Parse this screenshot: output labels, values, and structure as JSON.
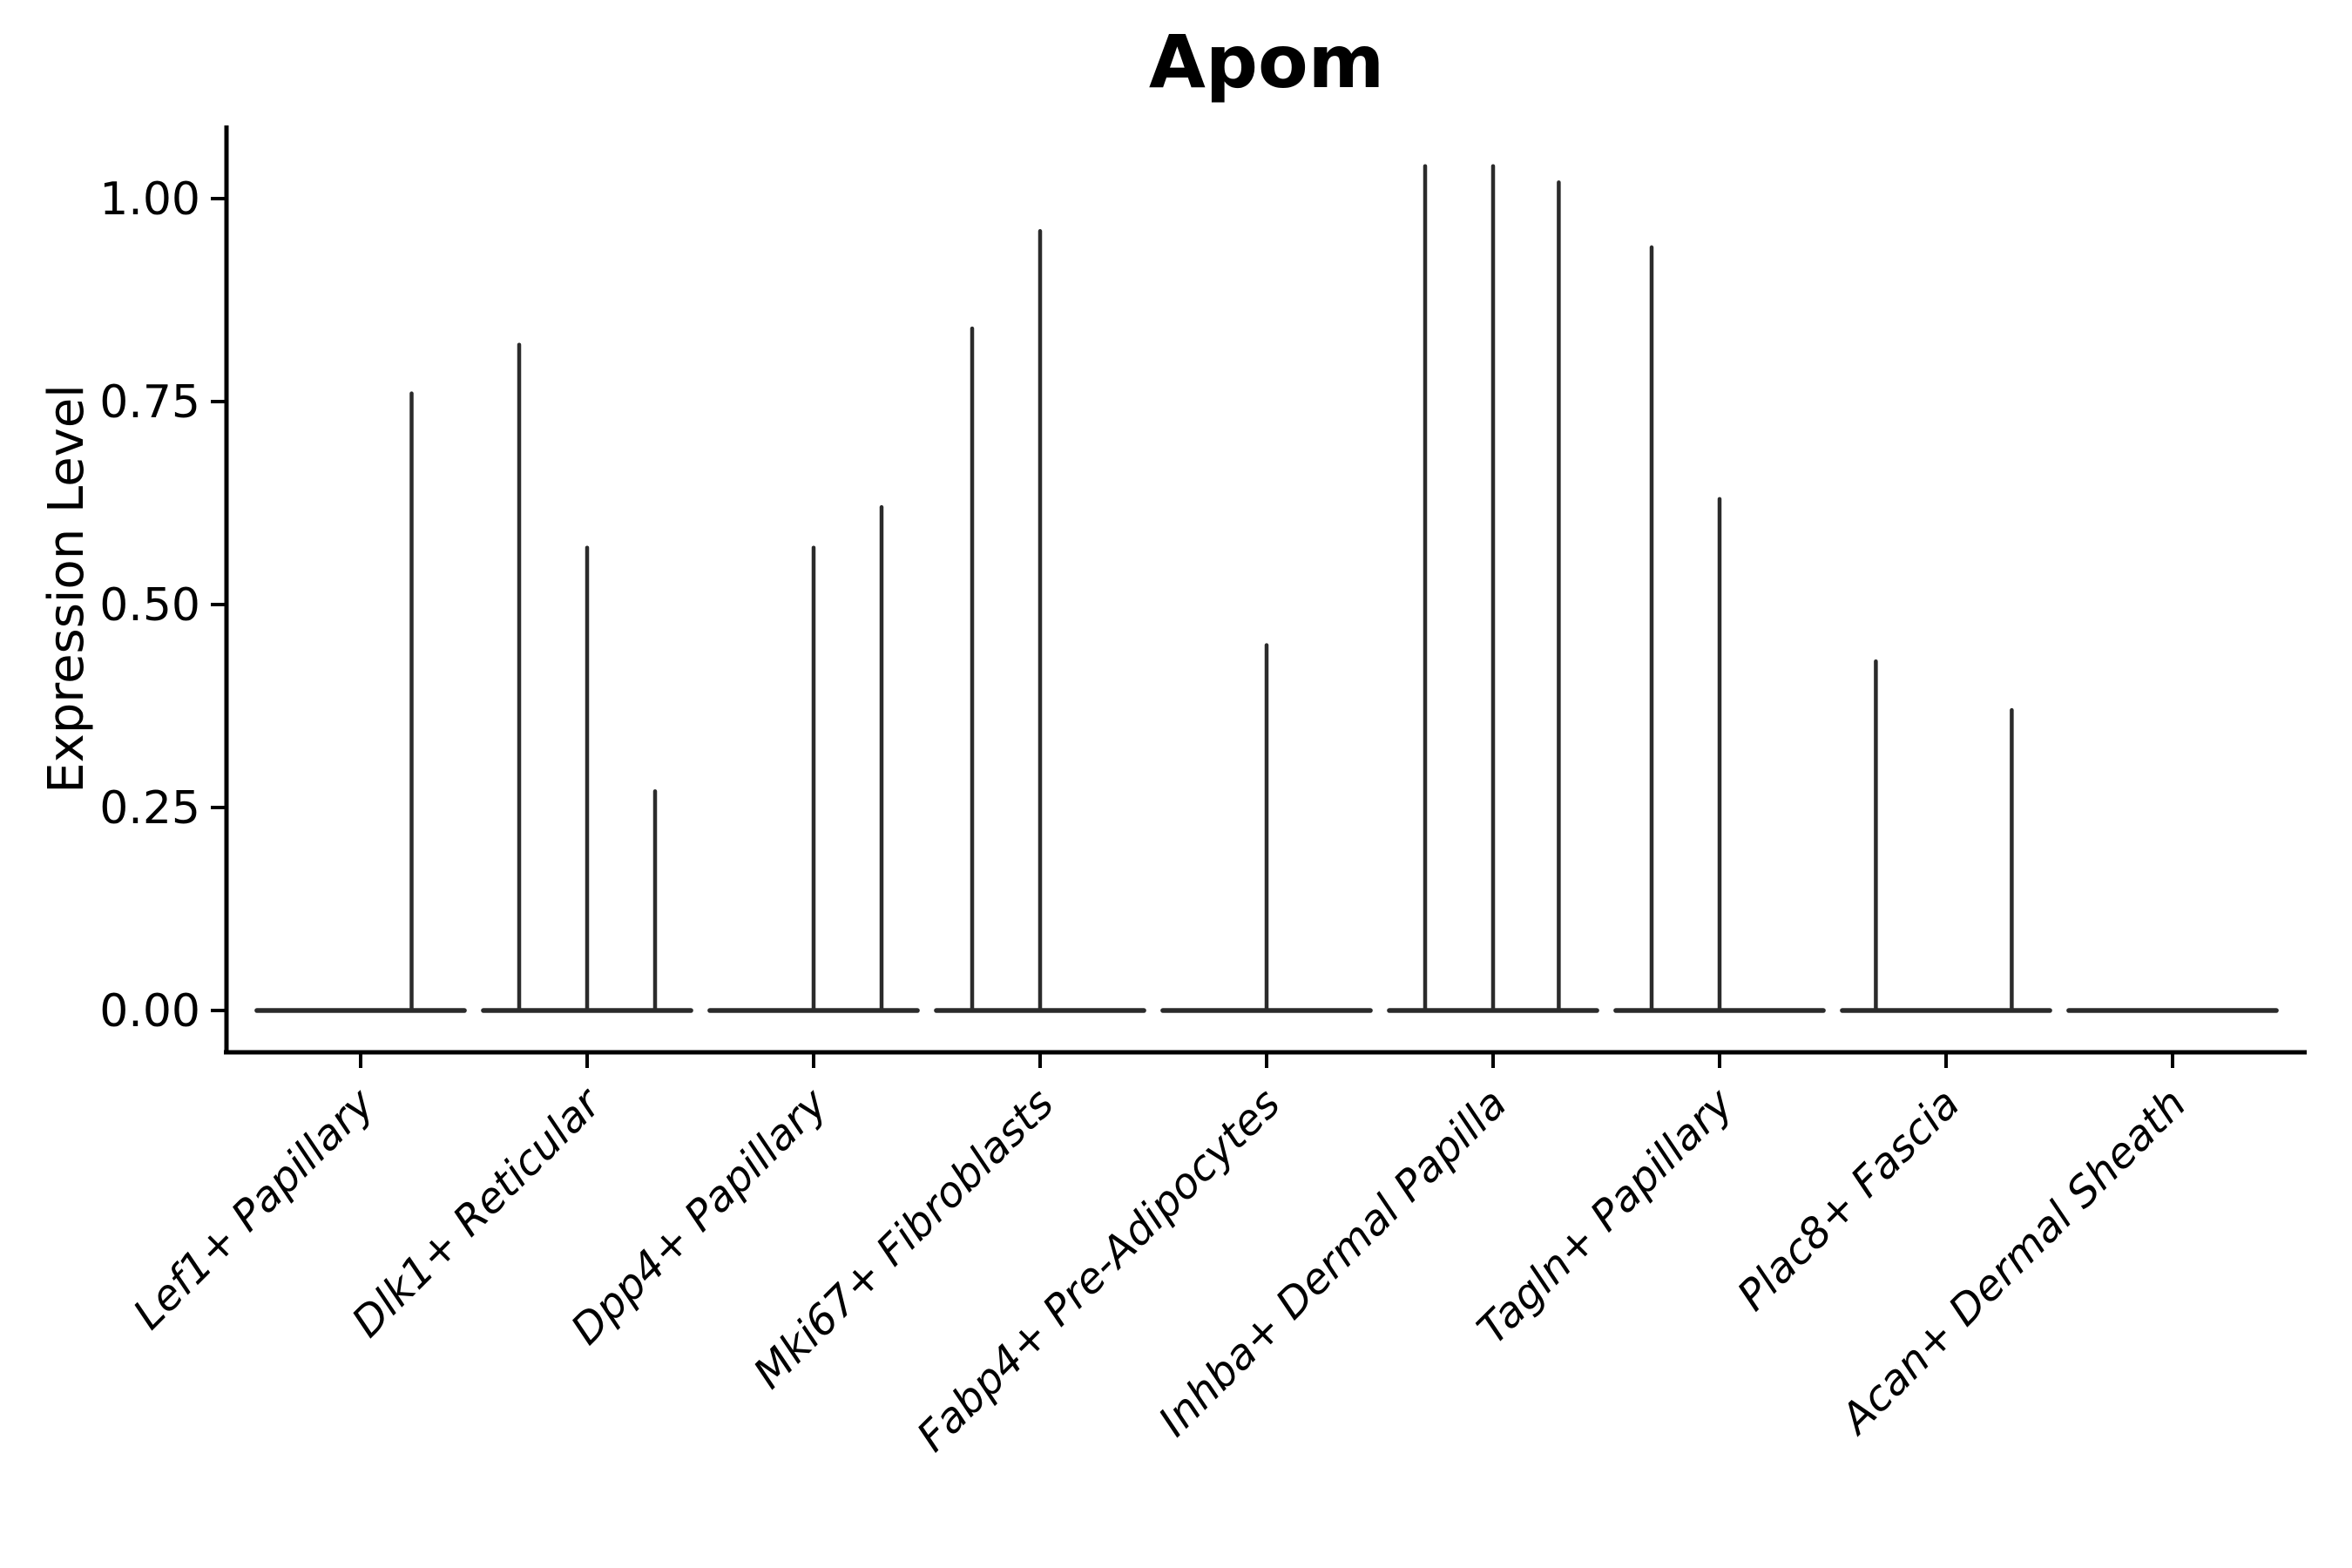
{
  "title": "Apom",
  "chart_data": {
    "type": "violin",
    "title": "Apom",
    "xlabel": "",
    "ylabel": "Expression Level",
    "ylim": [
      -0.052,
      1.09
    ],
    "yticks": [
      0,
      0.25,
      0.5,
      0.75,
      1.0
    ],
    "ytick_labels": [
      "0.00",
      "0.25",
      "0.50",
      "0.75",
      "1.00"
    ],
    "grid": false,
    "legend": "none",
    "line_color": "#2b2b2b",
    "categories": [
      "Lef1+ Papillary",
      "Dlk1+ Reticular",
      "Dpp4+ Papillary",
      "Mki67+ Fibroblasts",
      "Fabp4+ Pre-Adipocytes",
      "Inhba+ Dermal Papilla",
      "Tagln+ Papillary",
      "Plac8+ Fascia",
      "Acan+ Dermal Sheath"
    ],
    "baseline_value": 0.0,
    "baseline_halfwidth": 0.458,
    "violins": [
      {
        "category": "Lef1+ Papillary",
        "spikes": [
          {
            "offset": 0.225,
            "max": 0.76
          }
        ]
      },
      {
        "category": "Dlk1+ Reticular",
        "spikes": [
          {
            "offset": -0.3,
            "max": 0.82
          },
          {
            "offset": 0.0,
            "max": 0.57
          },
          {
            "offset": 0.3,
            "max": 0.27
          }
        ]
      },
      {
        "category": "Dpp4+ Papillary",
        "spikes": [
          {
            "offset": 0.0,
            "max": 0.57
          },
          {
            "offset": 0.3,
            "max": 0.62
          }
        ]
      },
      {
        "category": "Mki67+ Fibroblasts",
        "spikes": [
          {
            "offset": -0.3,
            "max": 0.84
          },
          {
            "offset": 0.0,
            "max": 0.96
          }
        ]
      },
      {
        "category": "Fabp4+ Pre-Adipocytes",
        "spikes": [
          {
            "offset": 0.0,
            "max": 0.45
          }
        ]
      },
      {
        "category": "Inhba+ Dermal Papilla",
        "spikes": [
          {
            "offset": -0.3,
            "max": 1.04
          },
          {
            "offset": 0.0,
            "max": 1.04
          },
          {
            "offset": 0.29,
            "max": 1.02
          }
        ]
      },
      {
        "category": "Tagln+ Papillary",
        "spikes": [
          {
            "offset": -0.3,
            "max": 0.94
          },
          {
            "offset": 0.0,
            "max": 0.63
          }
        ]
      },
      {
        "category": "Plac8+ Fascia",
        "spikes": [
          {
            "offset": -0.31,
            "max": 0.43
          },
          {
            "offset": 0.29,
            "max": 0.37
          }
        ]
      },
      {
        "category": "Acan+ Dermal Sheath",
        "spikes": []
      }
    ]
  }
}
